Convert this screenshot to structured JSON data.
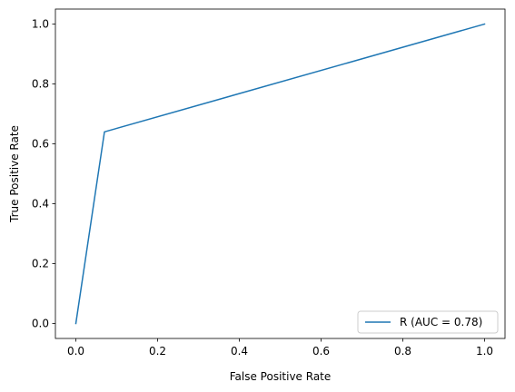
{
  "chart_data": {
    "type": "line",
    "title": "",
    "xlabel": "False Positive Rate",
    "ylabel": "True Positive Rate",
    "xlim": [
      -0.05,
      1.05
    ],
    "ylim": [
      -0.05,
      1.05
    ],
    "xticks": [
      0.0,
      0.2,
      0.4,
      0.6,
      0.8,
      1.0
    ],
    "yticks": [
      0.0,
      0.2,
      0.4,
      0.6,
      0.8,
      1.0
    ],
    "xtick_labels": [
      "0.0",
      "0.2",
      "0.4",
      "0.6",
      "0.8",
      "1.0"
    ],
    "ytick_labels": [
      "0.0",
      "0.2",
      "0.4",
      "0.6",
      "0.8",
      "1.0"
    ],
    "grid": false,
    "legend_position": "lower-right",
    "series": [
      {
        "name": "R (AUC = 0.78)",
        "color": "#1f77b4",
        "x": [
          0.0,
          0.07,
          1.0
        ],
        "y": [
          0.0,
          0.64,
          1.0
        ]
      }
    ]
  }
}
